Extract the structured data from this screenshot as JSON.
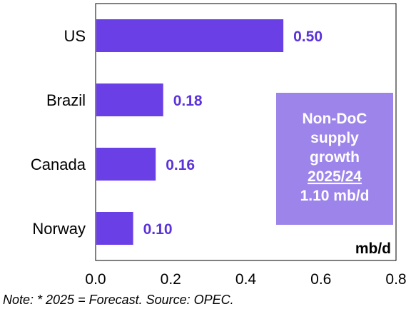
{
  "chart_data": {
    "type": "bar",
    "orientation": "horizontal",
    "categories": [
      "US",
      "Brazil",
      "Canada",
      "Norway"
    ],
    "values": [
      0.5,
      0.18,
      0.16,
      0.1
    ],
    "value_labels": [
      "0.50",
      "0.18",
      "0.16",
      "0.10"
    ],
    "xlim": [
      0.0,
      0.8
    ],
    "x_ticks": [
      "0.0",
      "0.2",
      "0.4",
      "0.6",
      "0.8"
    ],
    "unit_label": "mb/d",
    "grid": false,
    "bar_color": "#6A3FE6",
    "label_color": "#5B33D9",
    "callout": {
      "lines": [
        "Non-DoC",
        "supply",
        "growth",
        "2025/24",
        "1.10 mb/d"
      ],
      "underlined_line": "2025/24",
      "background": "#9D84EB"
    }
  },
  "note": "Note: * 2025 = Forecast. Source: OPEC."
}
